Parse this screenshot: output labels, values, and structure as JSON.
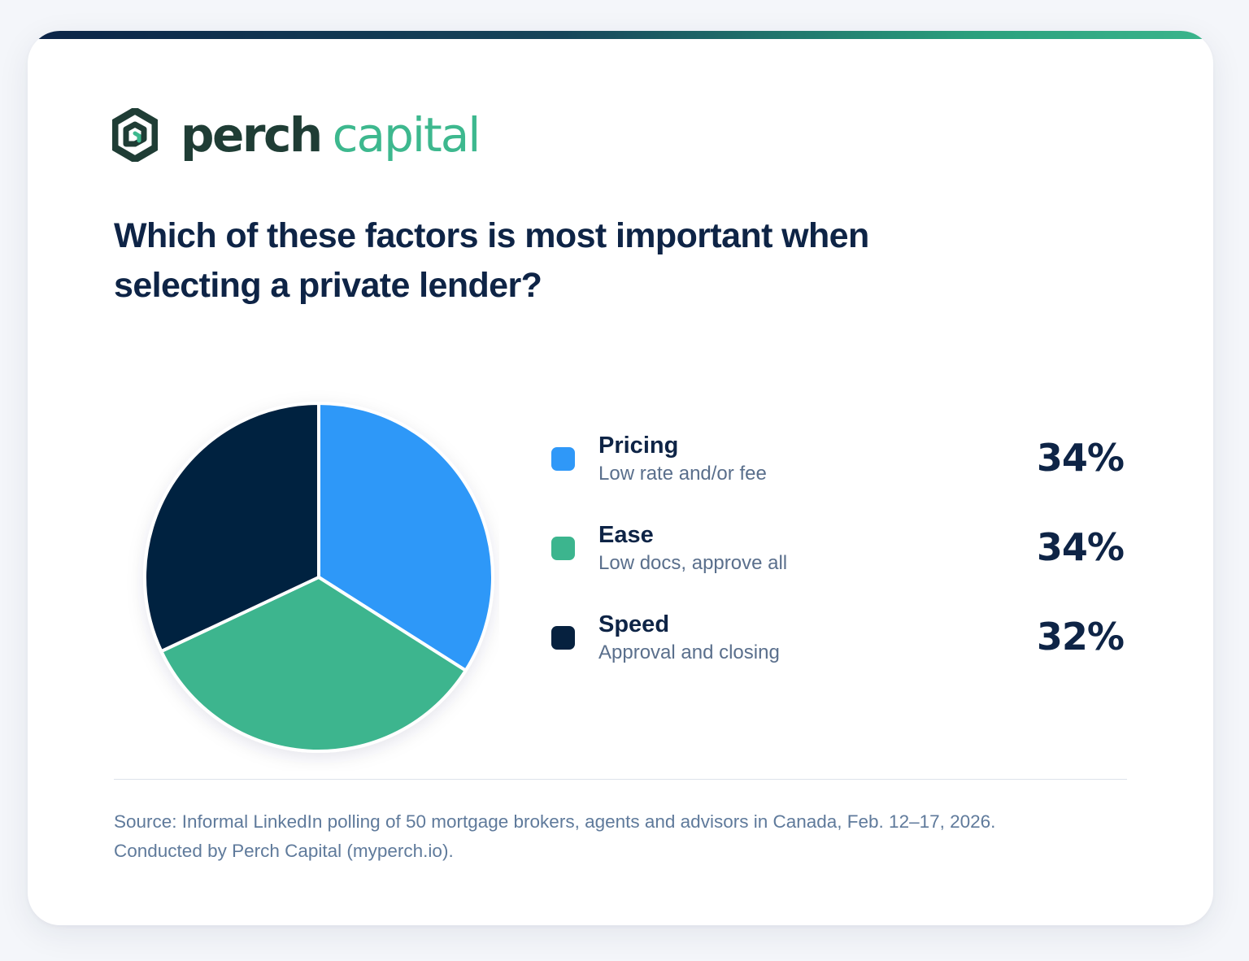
{
  "brand": {
    "name_part1": "perch",
    "name_part2": "capital",
    "icon": "perch-hexagon-logo-icon",
    "colors": {
      "dark_green": "#1f3d35",
      "mint": "#3db88e",
      "navy": "#0e2446"
    }
  },
  "question": "Which of these factors is most important when selecting a private lender?",
  "chart_data": {
    "type": "pie",
    "title": "Which of these factors is most important when selecting a private lender?",
    "categories": [
      "Pricing",
      "Ease",
      "Speed"
    ],
    "values": [
      34,
      34,
      32
    ],
    "unit": "%",
    "colors": [
      "#2f98f8",
      "#3cb58e",
      "#06213f"
    ],
    "legend_position": "right",
    "items": [
      {
        "label": "Pricing",
        "sub": "Low rate and/or fee",
        "value": 34,
        "pct_label": "34%",
        "color": "#2f98f8"
      },
      {
        "label": "Ease",
        "sub": "Low docs, approve all",
        "value": 34,
        "pct_label": "34%",
        "color": "#3cb58e"
      },
      {
        "label": "Speed",
        "sub": "Approval and closing",
        "value": 32,
        "pct_label": "32%",
        "color": "#06213f"
      }
    ]
  },
  "footer": {
    "source_line1": "Source: Informal LinkedIn polling of 50 mortgage brokers, agents and advisors in Canada, Feb. 12–17, 2026.",
    "source_line2": "Conducted by Perch Capital (myperch.io)."
  }
}
